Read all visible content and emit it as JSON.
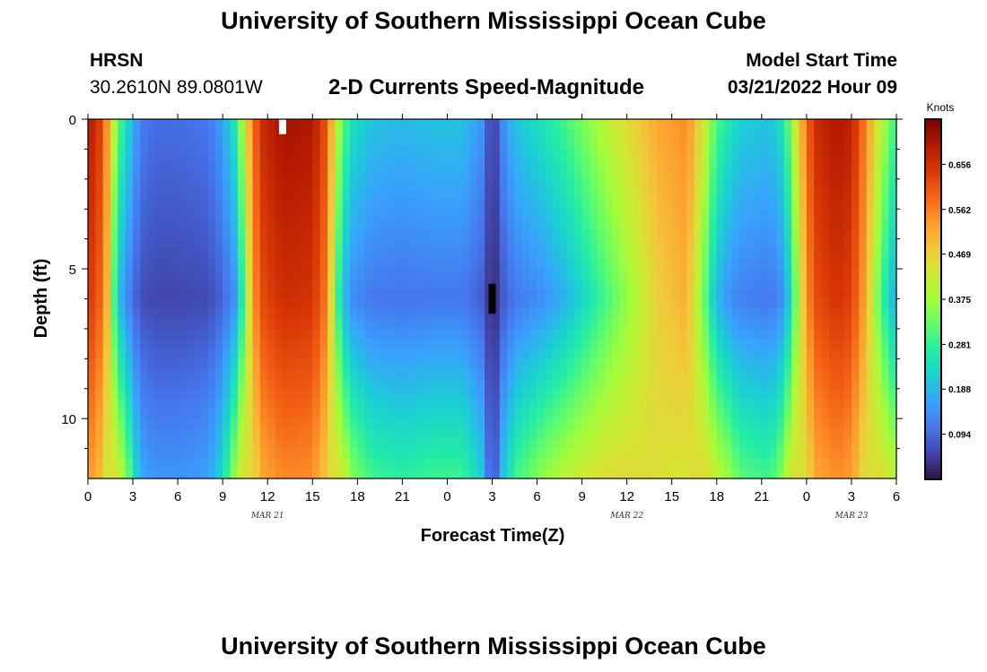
{
  "header": {
    "title_top": "University of Southern Mississippi Ocean Cube",
    "title_bottom": "University of Southern Mississippi Ocean Cube",
    "station": "HRSN",
    "coords": "30.2610N  89.0801W",
    "subtitle": "2-D Currents Speed-Magnitude",
    "start_label": "Model Start Time",
    "start_value": "03/21/2022 Hour 09"
  },
  "colors": {
    "colormap": [
      "#30123b",
      "#4145ab",
      "#4675ed",
      "#39a2fc",
      "#1bcfd4",
      "#24eca6",
      "#61fc6c",
      "#a4fc3b",
      "#d1e834",
      "#f3c63a",
      "#fe9b2d",
      "#f36315",
      "#d93806",
      "#b11901",
      "#7a0402"
    ]
  },
  "chart_data": {
    "type": "heatmap",
    "title": "2-D Currents Speed-Magnitude",
    "xlabel": "Forecast Time(Z)",
    "ylabel": "Depth (ft)",
    "x_tick_labels": [
      "0",
      "3",
      "6",
      "9",
      "12",
      "15",
      "18",
      "21",
      "0",
      "3",
      "6",
      "9",
      "12",
      "15",
      "18",
      "21",
      "0",
      "3",
      "6"
    ],
    "x_range_hours": [
      0,
      54
    ],
    "date_labels": [
      {
        "label": "MAR 21",
        "hour": 12
      },
      {
        "label": "MAR 22",
        "hour": 36
      },
      {
        "label": "MAR 23",
        "hour": 51
      }
    ],
    "y_tick_labels": [
      "0",
      "5",
      "10"
    ],
    "y_tick_values": [
      0,
      5,
      10
    ],
    "ylim": [
      0,
      12
    ],
    "colorbar": {
      "unit": "Knots",
      "range": [
        0,
        0.75
      ],
      "tick_values": [
        0.094,
        0.188,
        0.281,
        0.375,
        0.469,
        0.562,
        0.656
      ],
      "tick_labels": [
        "0.094",
        "0.188",
        "0.281",
        "0.375",
        "0.469",
        "0.562",
        "0.656"
      ]
    },
    "surface_speed_profile": {
      "hours": [
        0,
        1,
        2,
        3.5,
        4.5,
        6,
        8,
        9,
        10,
        10.5,
        11.5,
        13,
        15,
        16,
        16.5,
        17.5,
        19,
        21,
        23,
        25,
        26.5,
        27,
        27.5,
        28.5,
        30,
        32,
        34,
        36,
        38,
        40,
        41,
        42,
        43.5,
        45.5,
        46.5,
        47.5,
        48.5,
        50,
        51,
        52,
        53,
        54
      ],
      "knots": [
        0.7,
        0.62,
        0.32,
        0.12,
        0.1,
        0.1,
        0.11,
        0.16,
        0.28,
        0.45,
        0.66,
        0.71,
        0.7,
        0.6,
        0.42,
        0.25,
        0.2,
        0.19,
        0.2,
        0.2,
        0.14,
        0.01,
        0.12,
        0.2,
        0.24,
        0.3,
        0.38,
        0.45,
        0.52,
        0.55,
        0.45,
        0.3,
        0.22,
        0.2,
        0.25,
        0.48,
        0.66,
        0.7,
        0.68,
        0.55,
        0.4,
        0.28
      ]
    },
    "depth_factor": {
      "depths_ft": [
        0,
        6,
        12
      ],
      "low_speed_factor": [
        1.0,
        0.55,
        1.45
      ],
      "high_speed_factor": [
        1.0,
        0.93,
        0.78
      ]
    },
    "masked_cells": [
      {
        "hour": 13,
        "depth_from": 0,
        "depth_to": 0.5,
        "color": "#ffffff"
      },
      {
        "hour": 27,
        "depth_from": 5.5,
        "depth_to": 6.5,
        "color": "#000000"
      }
    ]
  }
}
